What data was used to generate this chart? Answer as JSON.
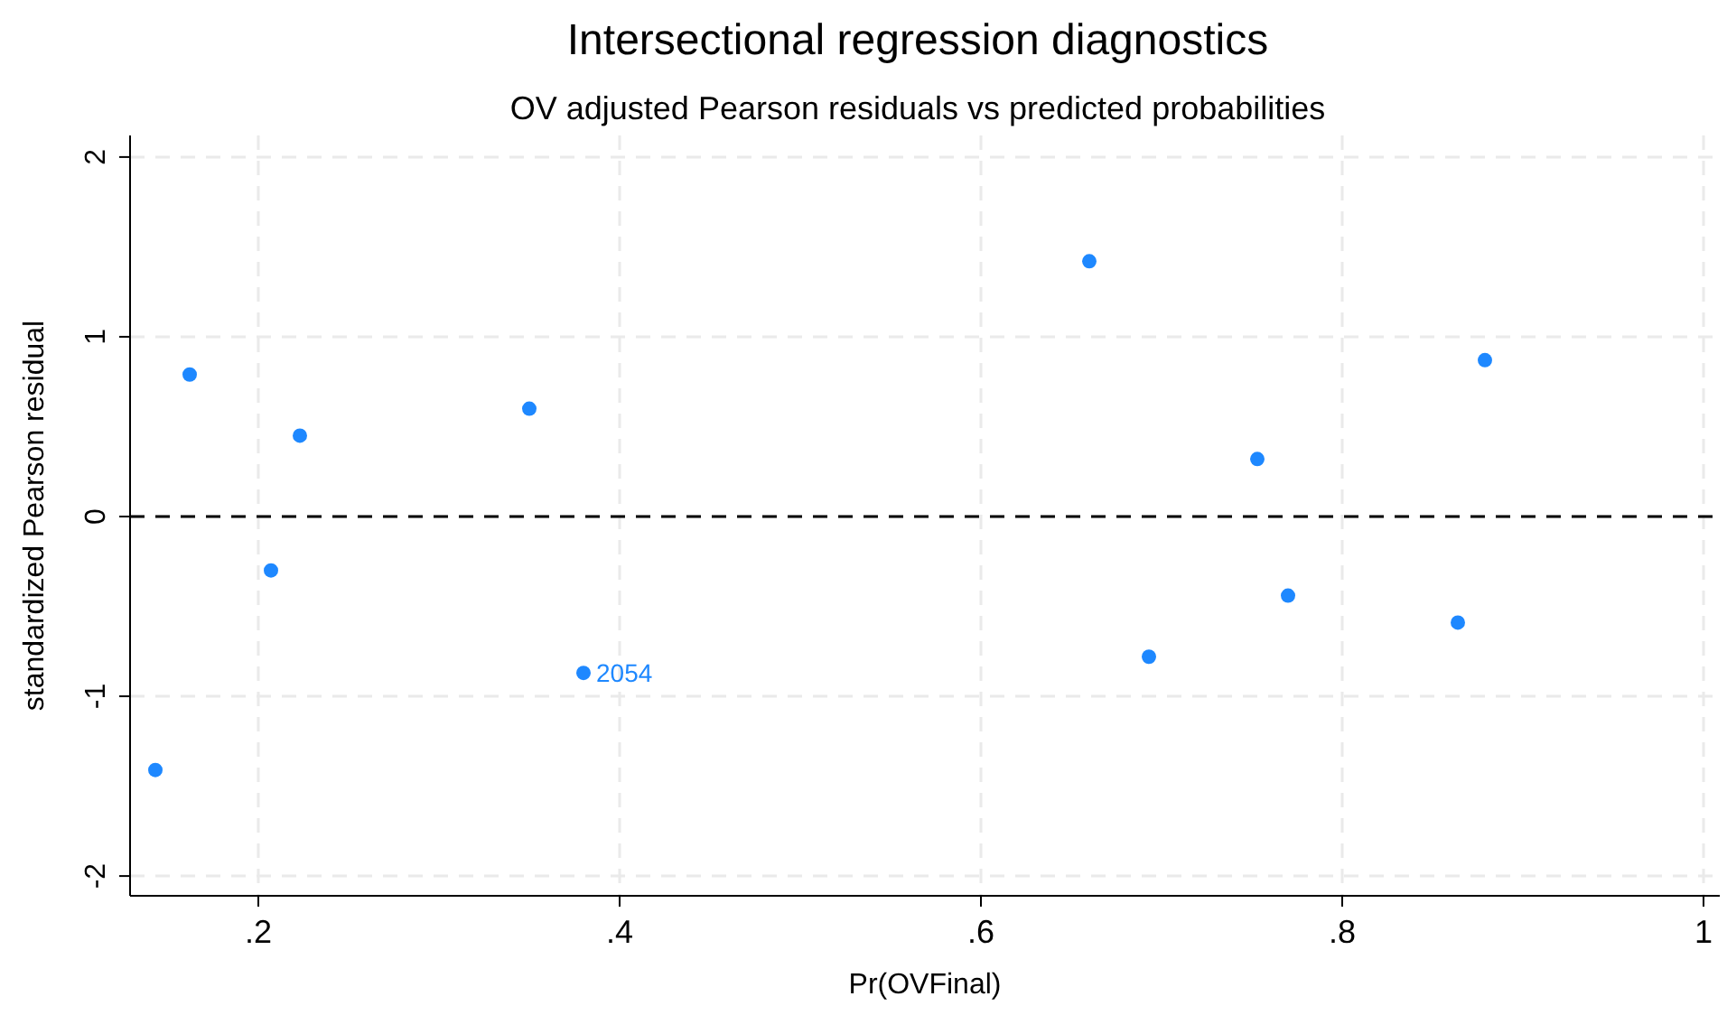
{
  "chart_data": {
    "type": "scatter",
    "title": "Intersectional regression diagnostics",
    "subtitle": "OV adjusted Pearson residuals vs predicted probabilities",
    "xlabel": "Pr(OVFinal)",
    "ylabel": "standardized Pearson residual",
    "x": [
      0.162,
      0.223,
      0.35,
      0.207,
      0.38,
      0.143,
      0.66,
      0.879,
      0.753,
      0.77,
      0.864,
      0.693
    ],
    "values": [
      0.79,
      0.45,
      0.6,
      -0.3,
      -0.87,
      -1.41,
      1.42,
      0.87,
      0.32,
      -0.44,
      -0.59,
      -0.78
    ],
    "annotations": [
      {
        "text": "2054",
        "x": 0.38,
        "y": -0.87
      }
    ],
    "color": "#1e88ff",
    "marker": "circle",
    "xlim": [
      0.129,
      1.009
    ],
    "ylim": [
      -2.11,
      2.12
    ],
    "xticks": [
      {
        "value": 0.2,
        "label": ".2"
      },
      {
        "value": 0.4,
        "label": ".4"
      },
      {
        "value": 0.6,
        "label": ".6"
      },
      {
        "value": 0.8,
        "label": ".8"
      },
      1
    ],
    "yticks": [
      -2,
      -1,
      0,
      1,
      2
    ],
    "grid": true,
    "ref_lines": [
      {
        "axis": "y",
        "value": 0,
        "color": "#000000",
        "line_style": "dashed"
      }
    ]
  }
}
